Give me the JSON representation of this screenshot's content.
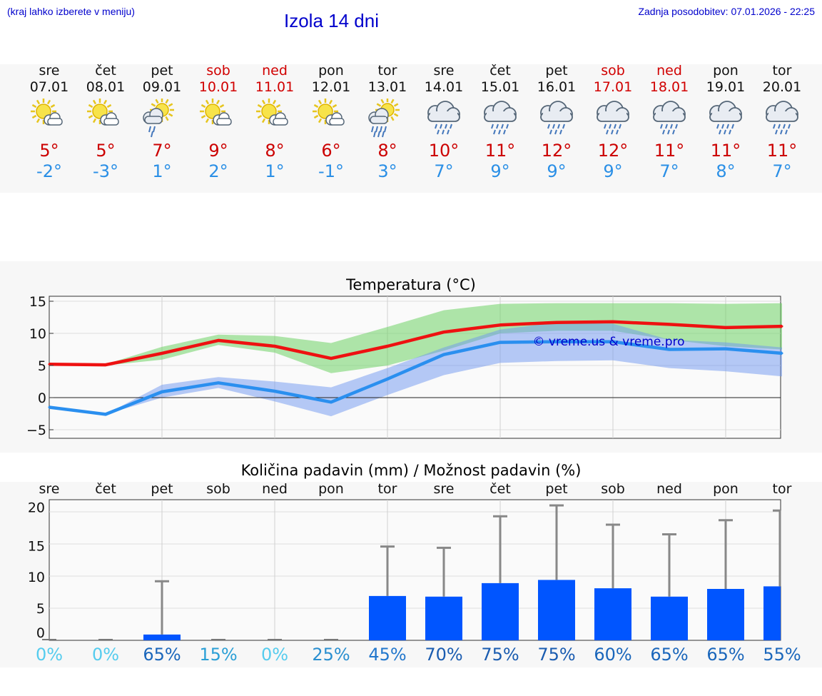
{
  "header": {
    "hint": "(kraj lahko izberete v meniju)",
    "title": "Izola 14 dni",
    "updated": "Zadnja posodobitev: 07.01.2026 - 22:25"
  },
  "colors": {
    "max": "#cc0000",
    "min": "#2a8fe6",
    "bar": "#0055ff",
    "weekend": "#d10000"
  },
  "days": [
    {
      "name": "sre",
      "date": "07.01",
      "weekend": false,
      "icon": "sun-cloud-icon",
      "tmax": "5°",
      "tmin": "-2°"
    },
    {
      "name": "čet",
      "date": "08.01",
      "weekend": false,
      "icon": "sun-cloud-icon",
      "tmax": "5°",
      "tmin": "-3°"
    },
    {
      "name": "pet",
      "date": "09.01",
      "weekend": false,
      "icon": "sun-cloud-drizzle-icon",
      "tmax": "7°",
      "tmin": "1°"
    },
    {
      "name": "sob",
      "date": "10.01",
      "weekend": true,
      "icon": "sun-cloud-icon",
      "tmax": "9°",
      "tmin": "2°"
    },
    {
      "name": "ned",
      "date": "11.01",
      "weekend": true,
      "icon": "sun-cloud-icon",
      "tmax": "8°",
      "tmin": "1°"
    },
    {
      "name": "pon",
      "date": "12.01",
      "weekend": false,
      "icon": "sun-cloud-icon",
      "tmax": "6°",
      "tmin": "-1°"
    },
    {
      "name": "tor",
      "date": "13.01",
      "weekend": false,
      "icon": "sun-cloud-rain-icon",
      "tmax": "8°",
      "tmin": "3°"
    },
    {
      "name": "sre",
      "date": "14.01",
      "weekend": false,
      "icon": "rain-cloud-icon",
      "tmax": "10°",
      "tmin": "7°"
    },
    {
      "name": "čet",
      "date": "15.01",
      "weekend": false,
      "icon": "rain-cloud-icon",
      "tmax": "11°",
      "tmin": "9°"
    },
    {
      "name": "pet",
      "date": "16.01",
      "weekend": false,
      "icon": "rain-cloud-icon",
      "tmax": "12°",
      "tmin": "9°"
    },
    {
      "name": "sob",
      "date": "17.01",
      "weekend": true,
      "icon": "rain-cloud-icon",
      "tmax": "12°",
      "tmin": "9°"
    },
    {
      "name": "ned",
      "date": "18.01",
      "weekend": true,
      "icon": "rain-cloud-icon",
      "tmax": "11°",
      "tmin": "7°"
    },
    {
      "name": "pon",
      "date": "19.01",
      "weekend": false,
      "icon": "rain-cloud-icon",
      "tmax": "11°",
      "tmin": "8°"
    },
    {
      "name": "tor",
      "date": "20.01",
      "weekend": false,
      "icon": "rain-cloud-icon",
      "tmax": "11°",
      "tmin": "7°"
    }
  ],
  "chart_data": [
    {
      "type": "line",
      "title": "Temperatura (°C)",
      "ylim": [
        -6,
        15
      ],
      "yticks": [
        15,
        10,
        5,
        0,
        -5
      ],
      "ytick_labels": [
        "15",
        "10",
        "5",
        "0",
        "−5"
      ],
      "watermark": "© vreme.us & vreme.pro",
      "series": [
        {
          "name": "max",
          "values": [
            5.2,
            5.1,
            6.9,
            8.9,
            8.0,
            6.1,
            8.0,
            10.2,
            11.3,
            11.7,
            11.8,
            11.4,
            10.9,
            11.1
          ],
          "band_low": [
            5.0,
            5.0,
            5.9,
            8.2,
            7.0,
            3.8,
            5.0,
            7.3,
            10.0,
            10.4,
            10.4,
            9.0,
            8.0,
            7.5
          ],
          "band_high": [
            5.3,
            5.2,
            7.9,
            9.8,
            9.6,
            8.5,
            11.0,
            13.6,
            14.6,
            14.7,
            14.7,
            14.7,
            14.6,
            14.7
          ]
        },
        {
          "name": "min",
          "values": [
            -1.5,
            -2.6,
            0.9,
            2.3,
            1.0,
            -0.7,
            2.9,
            6.7,
            8.6,
            8.7,
            8.7,
            7.5,
            7.6,
            6.9
          ],
          "band_low": [
            -1.5,
            -2.6,
            -0.0,
            1.5,
            -0.6,
            -2.9,
            0.4,
            3.5,
            5.4,
            5.7,
            5.8,
            4.6,
            4.1,
            3.3
          ],
          "band_high": [
            -1.5,
            -2.6,
            2.0,
            3.2,
            2.5,
            1.6,
            4.6,
            7.8,
            10.6,
            11.7,
            11.5,
            9.0,
            8.6,
            7.8
          ]
        }
      ]
    },
    {
      "type": "bar",
      "title": "Količina padavin (mm) / Možnost padavin (%)",
      "categories": [
        "sre",
        "čet",
        "pet",
        "sob",
        "ned",
        "pon",
        "tor",
        "sre",
        "čet",
        "pet",
        "sob",
        "ned",
        "pon",
        "tor"
      ],
      "ylim": [
        -1,
        22
      ],
      "yticks": [
        20,
        15,
        10,
        5,
        0
      ],
      "values": [
        0,
        0,
        0.9,
        0,
        0,
        0,
        6.9,
        6.8,
        8.9,
        9.4,
        8.1,
        6.8,
        8.0,
        8.4
      ],
      "error_high": [
        0,
        0,
        9.2,
        0,
        0,
        0,
        14.6,
        14.4,
        19.3,
        21.0,
        18.0,
        16.5,
        18.7,
        20.2
      ],
      "probability": [
        "0%",
        "0%",
        "65%",
        "15%",
        "0%",
        "25%",
        "45%",
        "70%",
        "75%",
        "75%",
        "60%",
        "65%",
        "65%",
        "55%"
      ],
      "probability_colors": [
        "#55ccee",
        "#55ccee",
        "#1a66bb",
        "#2a9fd6",
        "#55ccee",
        "#2a8fd0",
        "#2277cc",
        "#1a5cb0",
        "#1a5cb0",
        "#1a5cb0",
        "#1a66bb",
        "#1a66bb",
        "#1a66bb",
        "#1a66bb"
      ]
    }
  ]
}
